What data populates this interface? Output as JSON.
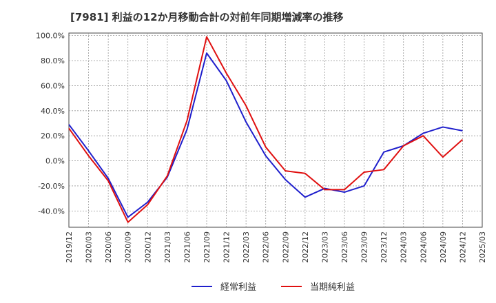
{
  "chart_data": {
    "type": "line",
    "title": "[7981]  利益の12か月移動合計の対前年同期増減率の推移",
    "xlabel": "",
    "ylabel": "",
    "ylim": [
      -53,
      102
    ],
    "y_ticks": [
      {
        "value": 100,
        "label": "100.0%"
      },
      {
        "value": 80,
        "label": "80.0%"
      },
      {
        "value": 60,
        "label": "60.0%"
      },
      {
        "value": 40,
        "label": "40.0%"
      },
      {
        "value": 20,
        "label": "20.0%"
      },
      {
        "value": 0,
        "label": "0.0%"
      },
      {
        "value": -20,
        "label": "-20.0%"
      },
      {
        "value": -40,
        "label": "-40.0%"
      }
    ],
    "categories": [
      "2019/12",
      "2020/03",
      "2020/06",
      "2020/09",
      "2020/12",
      "2021/03",
      "2021/06",
      "2021/09",
      "2021/12",
      "2022/03",
      "2022/06",
      "2022/09",
      "2022/12",
      "2023/03",
      "2023/06",
      "2023/09",
      "2023/12",
      "2024/03",
      "2024/06",
      "2024/09",
      "2024/12",
      "2025/03"
    ],
    "series": [
      {
        "name": "経常利益",
        "color": "#1f1fcc",
        "values": [
          29,
          8,
          -14,
          -45,
          -33,
          -13,
          25,
          86,
          64,
          31,
          4,
          -15,
          -29,
          -22,
          -25,
          -20,
          7,
          12,
          22,
          27,
          24,
          null
        ]
      },
      {
        "name": "当期純利益",
        "color": "#e01010",
        "values": [
          26,
          4,
          -16,
          -49,
          -35,
          -12,
          32,
          99,
          70,
          44,
          11,
          -8,
          -10,
          -23,
          -23,
          -9,
          -7,
          12,
          20,
          3,
          17,
          null
        ]
      }
    ],
    "legend_position": "bottom-center",
    "grid": true
  }
}
